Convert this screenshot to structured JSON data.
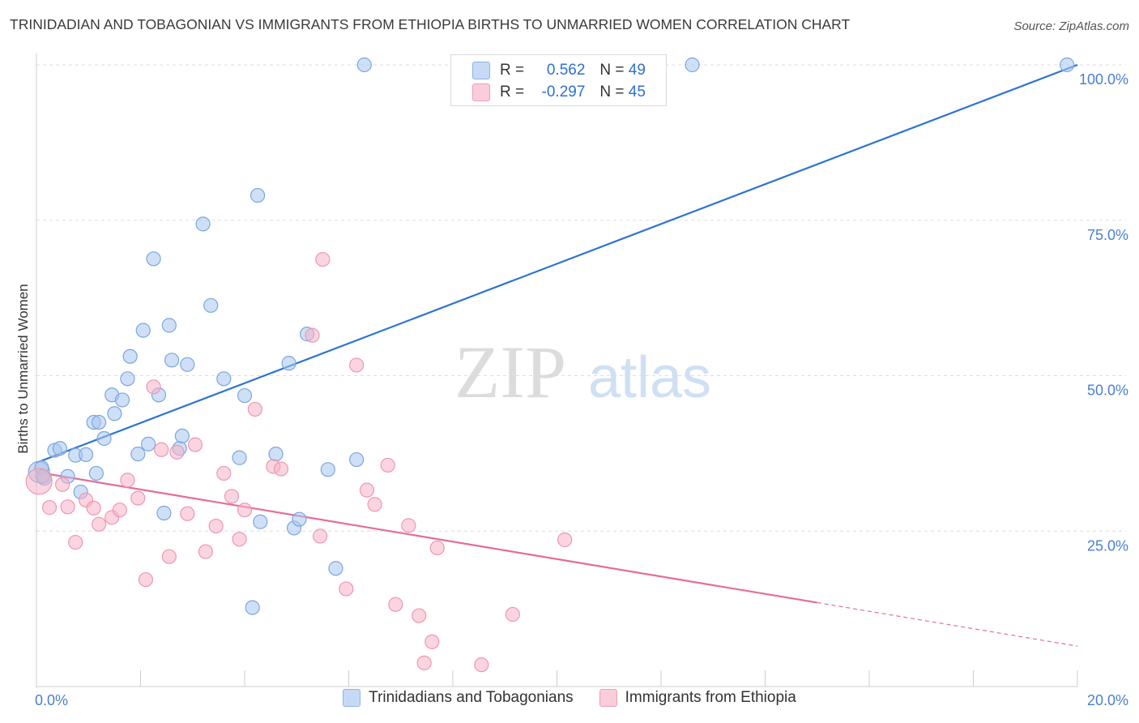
{
  "header": {
    "title": "TRINIDADIAN AND TOBAGONIAN VS IMMIGRANTS FROM ETHIOPIA BIRTHS TO UNMARRIED WOMEN CORRELATION CHART",
    "source": "Source: ZipAtlas.com"
  },
  "watermark": {
    "zip": "ZIP",
    "atlas": "atlas"
  },
  "legend": {
    "r_label": "R =",
    "n_label": "N =",
    "series": [
      {
        "r": "0.562",
        "n": "49",
        "color": "#a8c6ef"
      },
      {
        "r": "-0.297",
        "n": "45",
        "color": "#f6b3c6"
      }
    ]
  },
  "bottom_legend": {
    "items": [
      "Trinidadians and Tobagonians",
      "Immigrants from Ethiopia"
    ]
  },
  "colors": {
    "blue_fill": "#a8c6ef",
    "blue_stroke": "#7aa6e0",
    "blue_line": "#2e74d0",
    "pink_fill": "#f6b3c6",
    "pink_stroke": "#ee97b2",
    "pink_line": "#e46d96",
    "grid": "#dddddd",
    "tick_label": "#4a7fd0"
  },
  "chart_data": {
    "type": "scatter",
    "title": "TRINIDADIAN AND TOBAGONIAN VS IMMIGRANTS FROM ETHIOPIA BIRTHS TO UNMARRIED WOMEN CORRELATION CHART",
    "xlabel": "",
    "ylabel": "Births to Unmarried Women",
    "xlim": [
      0,
      20
    ],
    "ylim": [
      0,
      100
    ],
    "x_tick_labels": [
      "0.0%",
      "20.0%"
    ],
    "y_tick_labels": [
      {
        "value": 25,
        "label": "25.0%"
      },
      {
        "value": 50,
        "label": "50.0%"
      },
      {
        "value": 75,
        "label": "75.0%"
      },
      {
        "value": 100,
        "label": "100.0%"
      }
    ],
    "grid": true,
    "legend_position": "top-center",
    "series": [
      {
        "name": "Trinidadians and Tobagonians",
        "color": "#a8c6ef",
        "trend": {
          "x": [
            0,
            20
          ],
          "y": [
            36,
            100
          ]
        },
        "points": [
          [
            0.05,
            34.5
          ],
          [
            0.1,
            35.2
          ],
          [
            0.15,
            33.5
          ],
          [
            0.35,
            38
          ],
          [
            0.45,
            38.3
          ],
          [
            0.6,
            33.8
          ],
          [
            0.75,
            37.2
          ],
          [
            0.85,
            31.3
          ],
          [
            0.95,
            37.3
          ],
          [
            1.1,
            42.5
          ],
          [
            1.15,
            34.3
          ],
          [
            1.2,
            42.5
          ],
          [
            1.3,
            39.9
          ],
          [
            1.45,
            46.9
          ],
          [
            1.5,
            43.9
          ],
          [
            1.65,
            46.1
          ],
          [
            1.75,
            49.5
          ],
          [
            1.8,
            53.1
          ],
          [
            1.95,
            37.4
          ],
          [
            2.05,
            57.3
          ],
          [
            2.15,
            39.0
          ],
          [
            2.25,
            68.8
          ],
          [
            2.35,
            46.9
          ],
          [
            2.45,
            27.9
          ],
          [
            2.55,
            58.1
          ],
          [
            2.6,
            52.5
          ],
          [
            2.75,
            38.3
          ],
          [
            2.8,
            40.3
          ],
          [
            2.9,
            51.8
          ],
          [
            3.2,
            74.4
          ],
          [
            3.35,
            61.3
          ],
          [
            3.6,
            49.5
          ],
          [
            3.9,
            36.8
          ],
          [
            4.0,
            46.8
          ],
          [
            4.15,
            12.7
          ],
          [
            4.25,
            79.0
          ],
          [
            4.3,
            26.5
          ],
          [
            4.6,
            37.4
          ],
          [
            4.85,
            52.0
          ],
          [
            4.95,
            25.5
          ],
          [
            5.05,
            26.9
          ],
          [
            5.2,
            56.7
          ],
          [
            5.6,
            34.9
          ],
          [
            5.75,
            19.0
          ],
          [
            6.15,
            36.5
          ],
          [
            6.3,
            100
          ],
          [
            12.6,
            100
          ],
          [
            19.8,
            100
          ],
          [
            0.12,
            33.8
          ]
        ]
      },
      {
        "name": "Immigrants from Ethiopia",
        "color": "#f6b3c6",
        "trend": {
          "x": [
            0,
            15
          ],
          "y": [
            34.5,
            13.5
          ],
          "dash": {
            "x": [
              15,
              20
            ],
            "y": [
              13.5,
              6.5
            ]
          }
        },
        "points": [
          [
            0.05,
            33
          ],
          [
            0.25,
            28.8
          ],
          [
            0.5,
            32.5
          ],
          [
            0.6,
            28.9
          ],
          [
            0.75,
            23.2
          ],
          [
            0.95,
            30.0
          ],
          [
            1.1,
            28.7
          ],
          [
            1.2,
            26.1
          ],
          [
            1.45,
            27.2
          ],
          [
            1.6,
            28.4
          ],
          [
            1.75,
            33.2
          ],
          [
            1.95,
            30.3
          ],
          [
            2.1,
            17.2
          ],
          [
            2.25,
            48.2
          ],
          [
            2.4,
            38.1
          ],
          [
            2.55,
            20.9
          ],
          [
            2.7,
            37.7
          ],
          [
            2.9,
            27.8
          ],
          [
            3.05,
            38.9
          ],
          [
            3.25,
            21.7
          ],
          [
            3.45,
            25.8
          ],
          [
            3.6,
            34.3
          ],
          [
            3.75,
            30.6
          ],
          [
            3.9,
            23.7
          ],
          [
            4.0,
            28.4
          ],
          [
            4.2,
            44.6
          ],
          [
            4.55,
            35.4
          ],
          [
            4.7,
            35.0
          ],
          [
            5.3,
            56.5
          ],
          [
            5.45,
            24.2
          ],
          [
            5.5,
            68.7
          ],
          [
            5.95,
            15.7
          ],
          [
            6.15,
            51.7
          ],
          [
            6.35,
            31.6
          ],
          [
            6.5,
            29.3
          ],
          [
            6.75,
            35.6
          ],
          [
            6.9,
            13.2
          ],
          [
            7.15,
            25.9
          ],
          [
            7.35,
            11.4
          ],
          [
            7.45,
            3.8
          ],
          [
            7.6,
            7.2
          ],
          [
            7.7,
            22.3
          ],
          [
            8.55,
            3.5
          ],
          [
            9.15,
            11.6
          ],
          [
            10.15,
            23.6
          ]
        ]
      }
    ]
  }
}
